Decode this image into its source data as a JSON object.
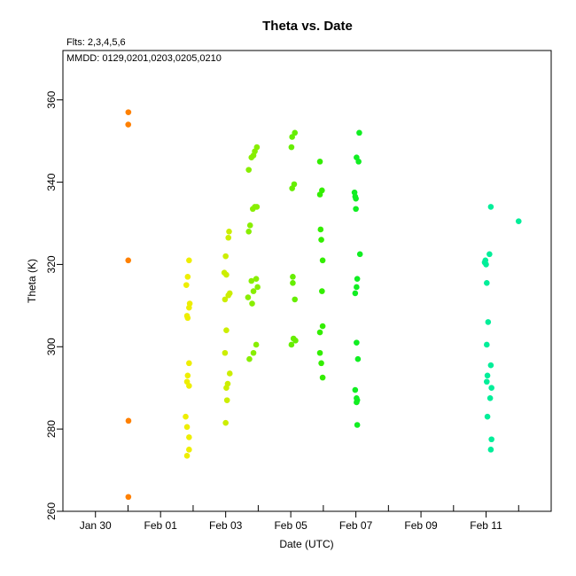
{
  "chart_data": {
    "type": "scatter",
    "title": "Theta  vs. Date",
    "flts_label": "Flts: 2,3,4,5,6",
    "mmdd_label": "MMDD: 0129,0201,0203,0205,0210",
    "xlabel": "Date (UTC)",
    "ylabel": "Theta (K)",
    "xlim": [
      "2026-01-29T00:00",
      "2026-02-13T00:00"
    ],
    "ylim": [
      260,
      372
    ],
    "x_ticks": [
      {
        "date": "2026-01-30T00:00",
        "label": "Jan 30"
      },
      {
        "date": "2026-02-01T00:00",
        "label": "Feb 01"
      },
      {
        "date": "2026-02-03T00:00",
        "label": "Feb 03"
      },
      {
        "date": "2026-02-05T00:00",
        "label": "Feb 05"
      },
      {
        "date": "2026-02-07T00:00",
        "label": "Feb 07"
      },
      {
        "date": "2026-02-09T00:00",
        "label": "Feb 09"
      },
      {
        "date": "2026-02-11T00:00",
        "label": "Feb 11"
      }
    ],
    "x_minor_ticks": [
      "2026-01-31T00:00",
      "2026-02-02T00:00",
      "2026-02-04T00:00",
      "2026-02-06T00:00",
      "2026-02-08T00:00",
      "2026-02-10T00:00",
      "2026-02-12T00:00"
    ],
    "y_ticks": [
      260,
      280,
      300,
      320,
      340,
      360
    ],
    "grid": false,
    "series": [
      {
        "color": "#ff8000",
        "points": [
          [
            "2026-01-31T00:15",
            357
          ],
          [
            "2026-01-31T00:10",
            354
          ],
          [
            "2026-01-31T00:10",
            321
          ],
          [
            "2026-01-31T00:20",
            282
          ],
          [
            "2026-01-31T00:15",
            263.5
          ]
        ]
      },
      {
        "color": "#eeee00",
        "points": [
          [
            "2026-02-01T21:00",
            321
          ],
          [
            "2026-02-01T20:00",
            317
          ],
          [
            "2026-02-01T19:00",
            315
          ],
          [
            "2026-02-01T21:30",
            310.5
          ],
          [
            "2026-02-01T21:00",
            309.5
          ],
          [
            "2026-02-01T19:30",
            307.5
          ],
          [
            "2026-02-01T20:00",
            307
          ],
          [
            "2026-02-01T21:00",
            296
          ],
          [
            "2026-02-01T20:00",
            293
          ],
          [
            "2026-02-01T19:30",
            291.5
          ],
          [
            "2026-02-01T21:00",
            290.5
          ],
          [
            "2026-02-01T18:30",
            283
          ],
          [
            "2026-02-01T19:30",
            280.5
          ],
          [
            "2026-02-01T21:00",
            278
          ],
          [
            "2026-02-01T21:00",
            275
          ],
          [
            "2026-02-01T19:30",
            273.5
          ]
        ]
      },
      {
        "color": "#ccee00",
        "points": [
          [
            "2026-02-03T02:30",
            328
          ],
          [
            "2026-02-03T02:00",
            326.5
          ],
          [
            "2026-02-03T00:00",
            322
          ],
          [
            "2026-02-02T23:00",
            318
          ],
          [
            "2026-02-03T00:30",
            317.5
          ],
          [
            "2026-02-03T03:00",
            313
          ],
          [
            "2026-02-03T02:00",
            312.5
          ],
          [
            "2026-02-02T23:30",
            311.5
          ],
          [
            "2026-02-03T00:30",
            304
          ],
          [
            "2026-02-02T23:30",
            298.5
          ],
          [
            "2026-02-03T03:00",
            293.5
          ],
          [
            "2026-02-03T01:30",
            291
          ],
          [
            "2026-02-03T00:30",
            290
          ],
          [
            "2026-02-03T01:00",
            287
          ],
          [
            "2026-02-03T00:00",
            281.5
          ]
        ]
      },
      {
        "color": "#88ee00",
        "points": [
          [
            "2026-02-03T23:00",
            348.5
          ],
          [
            "2026-02-03T21:30",
            347.5
          ],
          [
            "2026-02-03T20:30",
            346.5
          ],
          [
            "2026-02-03T19:00",
            346
          ],
          [
            "2026-02-03T17:00",
            343
          ],
          [
            "2026-02-03T21:30",
            334
          ],
          [
            "2026-02-03T23:00",
            334
          ],
          [
            "2026-02-03T20:00",
            333.5
          ],
          [
            "2026-02-03T18:00",
            329.5
          ],
          [
            "2026-02-03T17:00",
            328
          ],
          [
            "2026-02-03T22:30",
            316.5
          ],
          [
            "2026-02-03T19:00",
            316
          ],
          [
            "2026-02-03T23:30",
            314.5
          ],
          [
            "2026-02-03T20:30",
            313.5
          ],
          [
            "2026-02-03T16:30",
            312
          ],
          [
            "2026-02-03T19:30",
            310.5
          ],
          [
            "2026-02-03T22:30",
            300.5
          ],
          [
            "2026-02-03T20:30",
            298.5
          ],
          [
            "2026-02-03T17:30",
            297
          ]
        ]
      },
      {
        "color": "#66ee00",
        "points": [
          [
            "2026-02-05T03:00",
            352
          ],
          [
            "2026-02-05T01:00",
            351
          ],
          [
            "2026-02-05T00:30",
            348.5
          ],
          [
            "2026-02-05T02:30",
            339.5
          ],
          [
            "2026-02-05T01:00",
            338.5
          ],
          [
            "2026-02-05T01:30",
            317
          ],
          [
            "2026-02-05T01:30",
            315.5
          ],
          [
            "2026-02-05T03:00",
            311.5
          ],
          [
            "2026-02-05T02:00",
            302
          ],
          [
            "2026-02-05T03:30",
            301.5
          ],
          [
            "2026-02-05T00:30",
            300.5
          ]
        ]
      },
      {
        "color": "#33ee00",
        "points": [
          [
            "2026-02-05T21:30",
            345
          ],
          [
            "2026-02-05T23:00",
            338
          ],
          [
            "2026-02-05T21:30",
            337
          ],
          [
            "2026-02-05T22:00",
            328.5
          ],
          [
            "2026-02-05T22:30",
            326
          ],
          [
            "2026-02-05T23:30",
            321
          ],
          [
            "2026-02-05T23:00",
            313.5
          ],
          [
            "2026-02-05T23:30",
            305
          ],
          [
            "2026-02-05T21:30",
            303.5
          ],
          [
            "2026-02-05T21:30",
            298.5
          ],
          [
            "2026-02-05T22:30",
            296
          ],
          [
            "2026-02-05T23:30",
            292.5
          ]
        ]
      },
      {
        "color": "#11ee22",
        "points": [
          [
            "2026-02-07T02:30",
            352
          ],
          [
            "2026-02-07T00:30",
            346
          ],
          [
            "2026-02-07T02:00",
            345
          ],
          [
            "2026-02-06T23:00",
            337.5
          ],
          [
            "2026-02-06T23:30",
            336.5
          ],
          [
            "2026-02-07T00:00",
            336
          ],
          [
            "2026-02-07T00:00",
            333.5
          ],
          [
            "2026-02-07T03:00",
            322.5
          ],
          [
            "2026-02-07T01:00",
            316.5
          ],
          [
            "2026-02-07T00:30",
            314.5
          ],
          [
            "2026-02-06T23:30",
            313
          ],
          [
            "2026-02-07T00:30",
            301
          ],
          [
            "2026-02-07T01:30",
            297
          ],
          [
            "2026-02-06T23:30",
            289.5
          ],
          [
            "2026-02-07T00:30",
            287.5
          ],
          [
            "2026-02-07T01:00",
            287
          ],
          [
            "2026-02-07T00:30",
            286.5
          ],
          [
            "2026-02-07T01:00",
            281
          ]
        ]
      },
      {
        "color": "#00ee99",
        "points": [
          [
            "2026-02-11T03:30",
            334
          ],
          [
            "2026-02-11T02:30",
            322.5
          ],
          [
            "2026-02-10T23:30",
            321
          ],
          [
            "2026-02-10T23:00",
            320.5
          ],
          [
            "2026-02-11T00:00",
            320
          ],
          [
            "2026-02-11T00:30",
            315.5
          ],
          [
            "2026-02-11T01:30",
            306
          ],
          [
            "2026-02-11T00:30",
            300.5
          ],
          [
            "2026-02-11T03:30",
            295.5
          ],
          [
            "2026-02-11T01:00",
            293
          ],
          [
            "2026-02-11T00:30",
            291.5
          ],
          [
            "2026-02-11T04:00",
            290
          ],
          [
            "2026-02-11T03:00",
            287.5
          ],
          [
            "2026-02-11T01:00",
            283
          ],
          [
            "2026-02-11T04:00",
            277.5
          ],
          [
            "2026-02-11T03:30",
            275
          ]
        ]
      },
      {
        "color": "#00ee99",
        "points": [
          [
            "2026-02-12T00:00",
            330.5
          ]
        ]
      }
    ]
  }
}
